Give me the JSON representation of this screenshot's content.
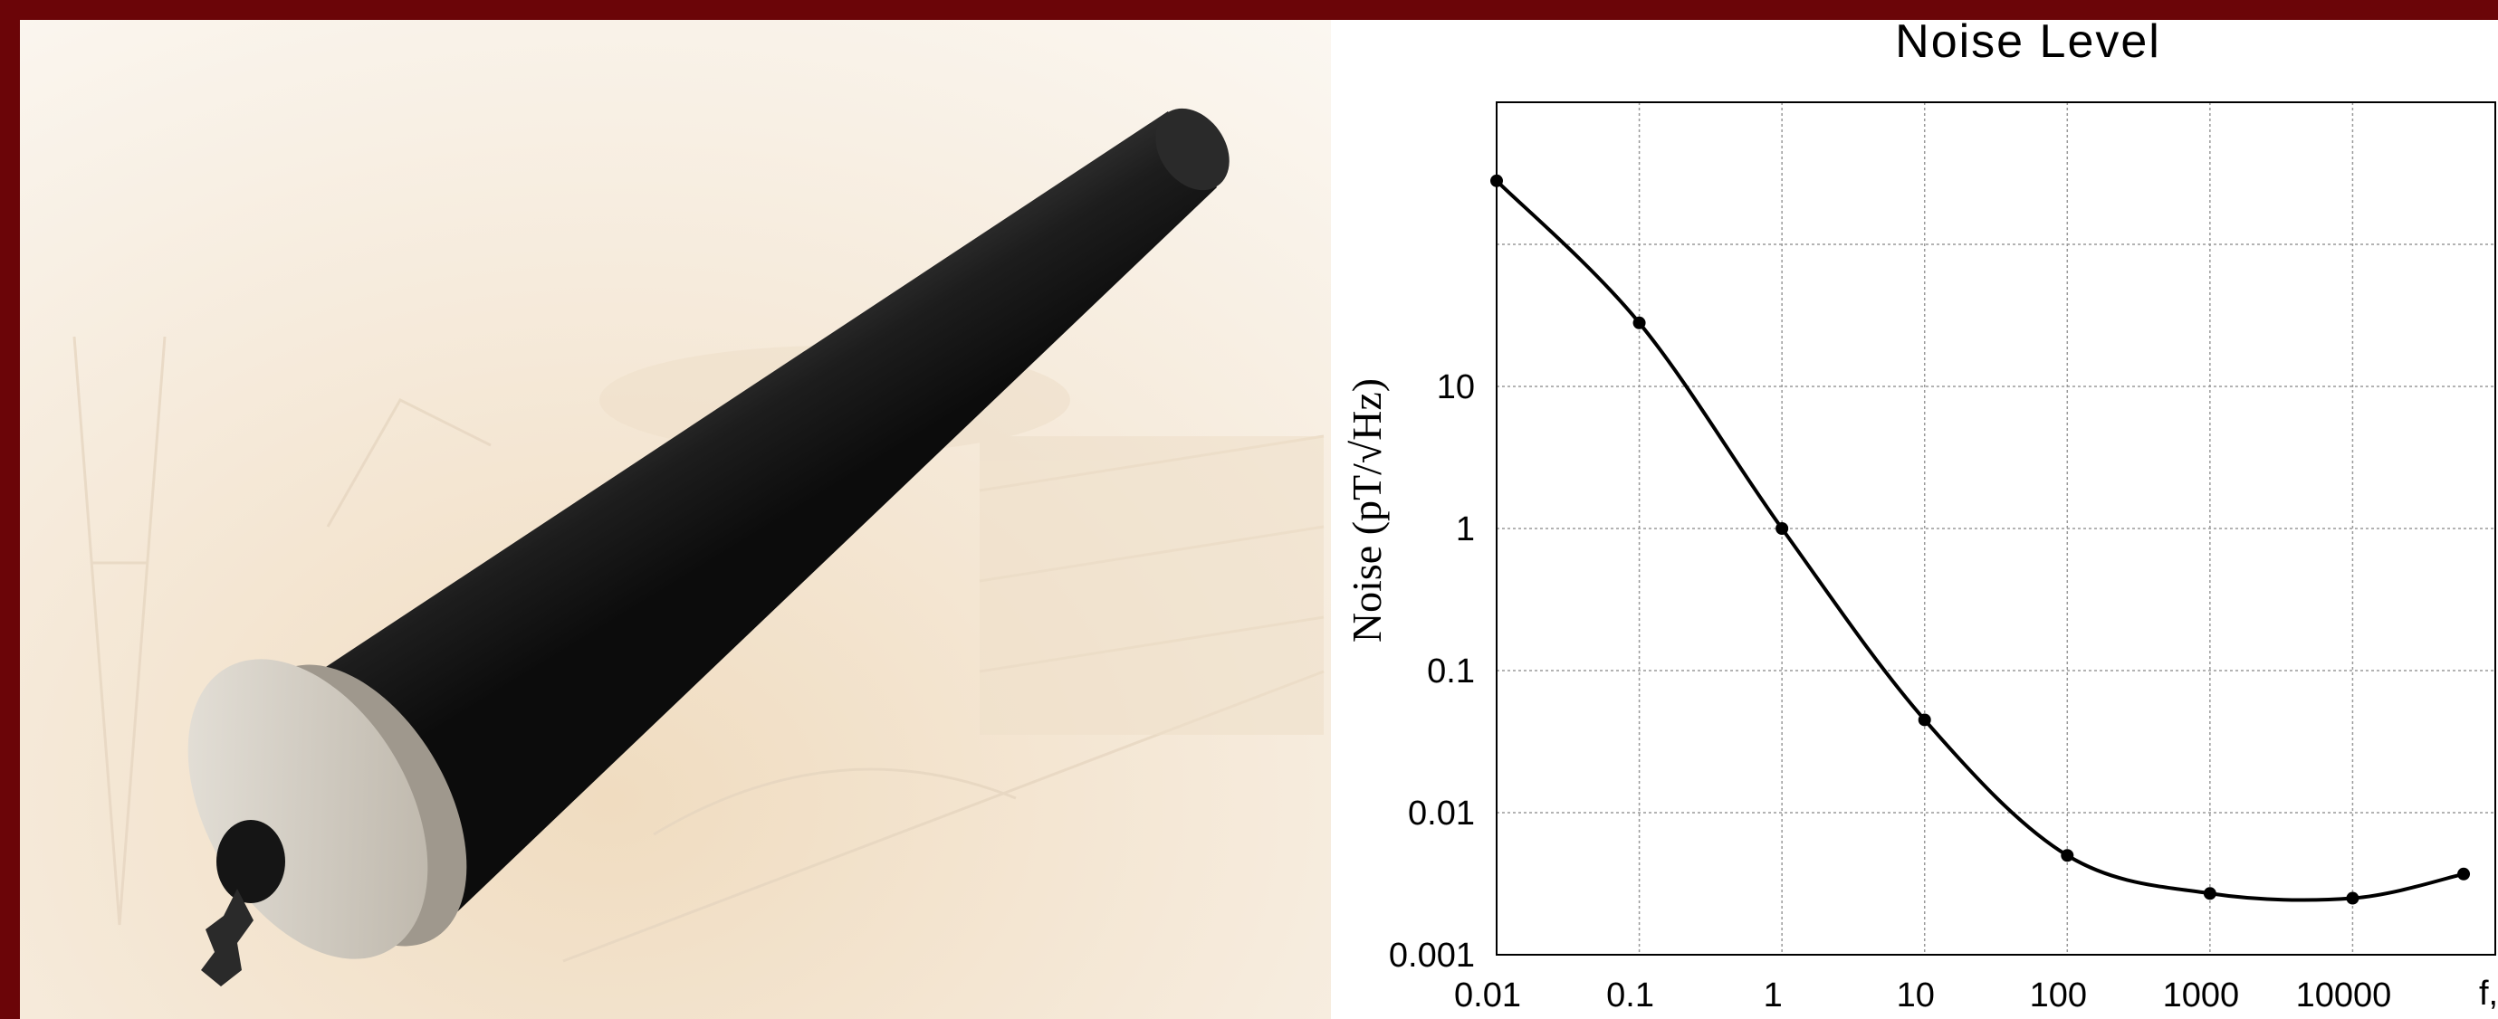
{
  "photo": {
    "description_icon": "magnetic-sensor-coil-image"
  },
  "colors": {
    "frame": "#6b0508",
    "sensor_body": "#1b1b1b",
    "end_cap": "#d8d2c7",
    "line": "#000000",
    "grid": "#9a9a9a"
  },
  "chart_data": {
    "type": "line",
    "title": "Noise Level",
    "xlabel": "f, Hz",
    "ylabel": "Noise (pT/√Hz)",
    "x_scale": "log",
    "y_scale": "log",
    "xlim": [
      0.01,
      100000
    ],
    "ylim": [
      0.001,
      1000
    ],
    "x_ticks": [
      {
        "value": 0.01,
        "label": "0.01"
      },
      {
        "value": 0.1,
        "label": "0.1"
      },
      {
        "value": 1,
        "label": "1"
      },
      {
        "value": 10,
        "label": "10"
      },
      {
        "value": 100,
        "label": "100"
      },
      {
        "value": 1000,
        "label": "1000"
      },
      {
        "value": 10000,
        "label": "10000"
      }
    ],
    "y_ticks": [
      {
        "value": 0.001,
        "label": "0.001"
      },
      {
        "value": 0.01,
        "label": "0.01"
      },
      {
        "value": 0.1,
        "label": "0.1"
      },
      {
        "value": 1,
        "label": "1"
      },
      {
        "value": 10,
        "label": "10"
      }
    ],
    "grid": true,
    "series": [
      {
        "x": [
          0.01,
          0.1,
          1,
          10,
          100,
          1000,
          10000,
          60000
        ],
        "y": [
          280,
          28,
          1,
          0.045,
          0.005,
          0.0027,
          0.0025,
          0.0037
        ]
      }
    ]
  }
}
